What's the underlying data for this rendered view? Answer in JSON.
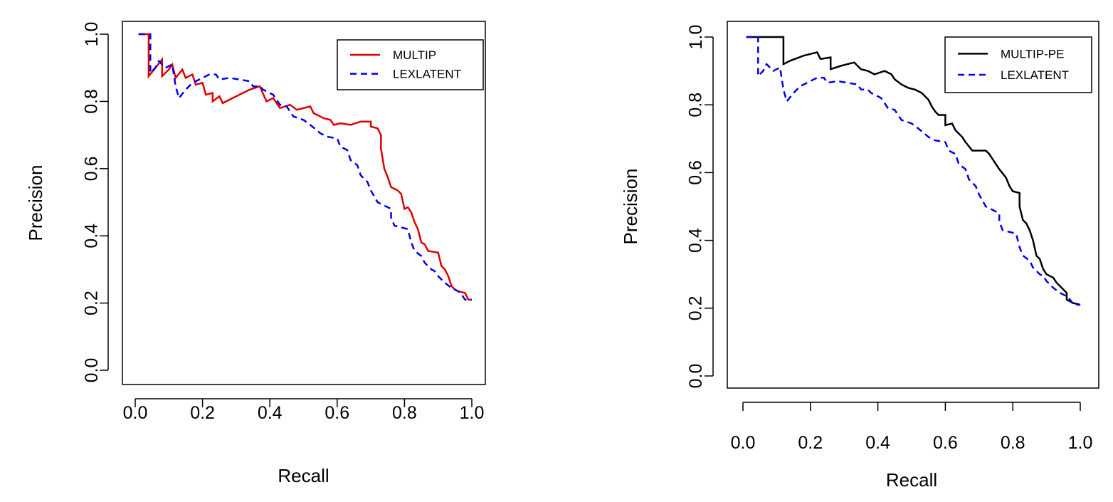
{
  "chart_data": [
    {
      "type": "line",
      "title": "",
      "xlabel": "Recall",
      "ylabel": "Precision",
      "xlim": [
        0,
        1
      ],
      "ylim": [
        0,
        1
      ],
      "x_ticks": [
        "0.0",
        "0.2",
        "0.4",
        "0.6",
        "0.8",
        "1.0"
      ],
      "y_ticks": [
        "0.0",
        "0.2",
        "0.4",
        "0.6",
        "0.8",
        "1.0"
      ],
      "legend_position": "top-right",
      "grid": false,
      "series": [
        {
          "name": "MULTIP",
          "color": "#dd0000",
          "style": "solid",
          "points": [
            [
              0.01,
              1.0
            ],
            [
              0.04,
              1.0
            ],
            [
              0.04,
              0.875
            ],
            [
              0.06,
              0.9
            ],
            [
              0.08,
              0.925
            ],
            [
              0.08,
              0.875
            ],
            [
              0.1,
              0.895
            ],
            [
              0.11,
              0.91
            ],
            [
              0.12,
              0.87
            ],
            [
              0.14,
              0.895
            ],
            [
              0.15,
              0.87
            ],
            [
              0.17,
              0.88
            ],
            [
              0.18,
              0.85
            ],
            [
              0.2,
              0.855
            ],
            [
              0.21,
              0.82
            ],
            [
              0.23,
              0.825
            ],
            [
              0.23,
              0.8
            ],
            [
              0.25,
              0.815
            ],
            [
              0.26,
              0.795
            ],
            [
              0.3,
              0.815
            ],
            [
              0.34,
              0.835
            ],
            [
              0.37,
              0.845
            ],
            [
              0.39,
              0.8
            ],
            [
              0.41,
              0.81
            ],
            [
              0.43,
              0.78
            ],
            [
              0.46,
              0.79
            ],
            [
              0.48,
              0.775
            ],
            [
              0.52,
              0.785
            ],
            [
              0.53,
              0.765
            ],
            [
              0.55,
              0.755
            ],
            [
              0.56,
              0.75
            ],
            [
              0.58,
              0.745
            ],
            [
              0.59,
              0.73
            ],
            [
              0.61,
              0.735
            ],
            [
              0.64,
              0.73
            ],
            [
              0.67,
              0.74
            ],
            [
              0.7,
              0.74
            ],
            [
              0.7,
              0.725
            ],
            [
              0.72,
              0.72
            ],
            [
              0.73,
              0.7
            ],
            [
              0.73,
              0.66
            ],
            [
              0.74,
              0.6
            ],
            [
              0.75,
              0.575
            ],
            [
              0.76,
              0.545
            ],
            [
              0.78,
              0.535
            ],
            [
              0.79,
              0.525
            ],
            [
              0.8,
              0.48
            ],
            [
              0.81,
              0.485
            ],
            [
              0.82,
              0.47
            ],
            [
              0.83,
              0.44
            ],
            [
              0.84,
              0.42
            ],
            [
              0.85,
              0.38
            ],
            [
              0.86,
              0.375
            ],
            [
              0.87,
              0.355
            ],
            [
              0.9,
              0.35
            ],
            [
              0.91,
              0.31
            ],
            [
              0.92,
              0.3
            ],
            [
              0.93,
              0.28
            ],
            [
              0.94,
              0.25
            ],
            [
              0.95,
              0.24
            ],
            [
              0.96,
              0.235
            ],
            [
              0.98,
              0.23
            ],
            [
              0.99,
              0.21
            ],
            [
              1.0,
              0.21
            ]
          ]
        },
        {
          "name": "LEXLATENT",
          "color": "#0000ee",
          "style": "dashed",
          "points": [
            [
              0.01,
              1.0
            ],
            [
              0.045,
              1.0
            ],
            [
              0.045,
              0.885
            ],
            [
              0.06,
              0.9
            ],
            [
              0.07,
              0.92
            ],
            [
              0.09,
              0.9
            ],
            [
              0.11,
              0.91
            ],
            [
              0.12,
              0.845
            ],
            [
              0.13,
              0.81
            ],
            [
              0.15,
              0.835
            ],
            [
              0.17,
              0.855
            ],
            [
              0.2,
              0.87
            ],
            [
              0.22,
              0.88
            ],
            [
              0.24,
              0.88
            ],
            [
              0.25,
              0.865
            ],
            [
              0.28,
              0.87
            ],
            [
              0.31,
              0.865
            ],
            [
              0.34,
              0.86
            ],
            [
              0.35,
              0.845
            ],
            [
              0.37,
              0.845
            ],
            [
              0.38,
              0.835
            ],
            [
              0.41,
              0.82
            ],
            [
              0.43,
              0.79
            ],
            [
              0.45,
              0.785
            ],
            [
              0.47,
              0.755
            ],
            [
              0.5,
              0.745
            ],
            [
              0.52,
              0.73
            ],
            [
              0.55,
              0.705
            ],
            [
              0.57,
              0.695
            ],
            [
              0.6,
              0.69
            ],
            [
              0.61,
              0.665
            ],
            [
              0.63,
              0.655
            ],
            [
              0.64,
              0.625
            ],
            [
              0.66,
              0.61
            ],
            [
              0.67,
              0.58
            ],
            [
              0.69,
              0.56
            ],
            [
              0.7,
              0.535
            ],
            [
              0.72,
              0.5
            ],
            [
              0.74,
              0.49
            ],
            [
              0.76,
              0.48
            ],
            [
              0.76,
              0.455
            ],
            [
              0.77,
              0.43
            ],
            [
              0.79,
              0.425
            ],
            [
              0.81,
              0.42
            ],
            [
              0.82,
              0.38
            ],
            [
              0.83,
              0.355
            ],
            [
              0.85,
              0.34
            ],
            [
              0.86,
              0.32
            ],
            [
              0.88,
              0.3
            ],
            [
              0.89,
              0.295
            ],
            [
              0.9,
              0.28
            ],
            [
              0.92,
              0.26
            ],
            [
              0.94,
              0.245
            ],
            [
              0.96,
              0.235
            ],
            [
              0.97,
              0.225
            ],
            [
              0.98,
              0.21
            ],
            [
              1.0,
              0.21
            ]
          ]
        }
      ]
    },
    {
      "type": "line",
      "title": "",
      "xlabel": "Recall",
      "ylabel": "Precision",
      "xlim": [
        0,
        1
      ],
      "ylim": [
        0,
        1
      ],
      "x_ticks": [
        "0.0",
        "0.2",
        "0.4",
        "0.6",
        "0.8",
        "1.0"
      ],
      "y_ticks": [
        "0.0",
        "0.2",
        "0.4",
        "0.6",
        "0.8",
        "1.0"
      ],
      "legend_position": "top-right",
      "grid": false,
      "series": [
        {
          "name": "MULTIP-PE",
          "color": "#000000",
          "style": "solid",
          "points": [
            [
              0.01,
              1.0
            ],
            [
              0.12,
              1.0
            ],
            [
              0.12,
              0.92
            ],
            [
              0.14,
              0.93
            ],
            [
              0.18,
              0.945
            ],
            [
              0.2,
              0.95
            ],
            [
              0.22,
              0.955
            ],
            [
              0.23,
              0.935
            ],
            [
              0.26,
              0.94
            ],
            [
              0.26,
              0.905
            ],
            [
              0.29,
              0.915
            ],
            [
              0.31,
              0.92
            ],
            [
              0.33,
              0.925
            ],
            [
              0.35,
              0.905
            ],
            [
              0.37,
              0.9
            ],
            [
              0.39,
              0.89
            ],
            [
              0.42,
              0.9
            ],
            [
              0.44,
              0.89
            ],
            [
              0.45,
              0.875
            ],
            [
              0.47,
              0.86
            ],
            [
              0.49,
              0.85
            ],
            [
              0.51,
              0.845
            ],
            [
              0.53,
              0.835
            ],
            [
              0.55,
              0.815
            ],
            [
              0.56,
              0.795
            ],
            [
              0.57,
              0.78
            ],
            [
              0.58,
              0.77
            ],
            [
              0.6,
              0.77
            ],
            [
              0.6,
              0.74
            ],
            [
              0.62,
              0.745
            ],
            [
              0.63,
              0.725
            ],
            [
              0.65,
              0.705
            ],
            [
              0.66,
              0.69
            ],
            [
              0.68,
              0.665
            ],
            [
              0.72,
              0.665
            ],
            [
              0.73,
              0.655
            ],
            [
              0.74,
              0.64
            ],
            [
              0.76,
              0.61
            ],
            [
              0.78,
              0.585
            ],
            [
              0.79,
              0.56
            ],
            [
              0.8,
              0.545
            ],
            [
              0.82,
              0.54
            ],
            [
              0.82,
              0.5
            ],
            [
              0.83,
              0.46
            ],
            [
              0.84,
              0.45
            ],
            [
              0.85,
              0.43
            ],
            [
              0.86,
              0.4
            ],
            [
              0.87,
              0.355
            ],
            [
              0.88,
              0.345
            ],
            [
              0.89,
              0.315
            ],
            [
              0.9,
              0.3
            ],
            [
              0.92,
              0.29
            ],
            [
              0.93,
              0.275
            ],
            [
              0.94,
              0.265
            ],
            [
              0.95,
              0.255
            ],
            [
              0.96,
              0.245
            ],
            [
              0.96,
              0.225
            ],
            [
              0.98,
              0.215
            ],
            [
              1.0,
              0.21
            ]
          ]
        },
        {
          "name": "LEXLATENT",
          "color": "#0000ee",
          "style": "dashed",
          "points": [
            [
              0.01,
              1.0
            ],
            [
              0.045,
              1.0
            ],
            [
              0.045,
              0.885
            ],
            [
              0.06,
              0.9
            ],
            [
              0.07,
              0.92
            ],
            [
              0.09,
              0.9
            ],
            [
              0.11,
              0.91
            ],
            [
              0.12,
              0.845
            ],
            [
              0.13,
              0.81
            ],
            [
              0.15,
              0.835
            ],
            [
              0.17,
              0.855
            ],
            [
              0.2,
              0.87
            ],
            [
              0.22,
              0.88
            ],
            [
              0.24,
              0.88
            ],
            [
              0.25,
              0.865
            ],
            [
              0.28,
              0.87
            ],
            [
              0.31,
              0.865
            ],
            [
              0.34,
              0.86
            ],
            [
              0.35,
              0.845
            ],
            [
              0.37,
              0.845
            ],
            [
              0.38,
              0.835
            ],
            [
              0.41,
              0.82
            ],
            [
              0.43,
              0.79
            ],
            [
              0.45,
              0.785
            ],
            [
              0.47,
              0.755
            ],
            [
              0.5,
              0.745
            ],
            [
              0.52,
              0.73
            ],
            [
              0.55,
              0.705
            ],
            [
              0.57,
              0.695
            ],
            [
              0.6,
              0.69
            ],
            [
              0.61,
              0.665
            ],
            [
              0.63,
              0.655
            ],
            [
              0.64,
              0.625
            ],
            [
              0.66,
              0.61
            ],
            [
              0.67,
              0.58
            ],
            [
              0.69,
              0.56
            ],
            [
              0.7,
              0.535
            ],
            [
              0.72,
              0.5
            ],
            [
              0.74,
              0.49
            ],
            [
              0.76,
              0.48
            ],
            [
              0.76,
              0.455
            ],
            [
              0.77,
              0.43
            ],
            [
              0.79,
              0.425
            ],
            [
              0.81,
              0.42
            ],
            [
              0.82,
              0.38
            ],
            [
              0.83,
              0.355
            ],
            [
              0.85,
              0.34
            ],
            [
              0.86,
              0.32
            ],
            [
              0.88,
              0.3
            ],
            [
              0.89,
              0.295
            ],
            [
              0.9,
              0.28
            ],
            [
              0.92,
              0.26
            ],
            [
              0.94,
              0.245
            ],
            [
              0.96,
              0.235
            ],
            [
              0.97,
              0.225
            ],
            [
              0.98,
              0.21
            ],
            [
              1.0,
              0.21
            ]
          ]
        }
      ]
    }
  ]
}
